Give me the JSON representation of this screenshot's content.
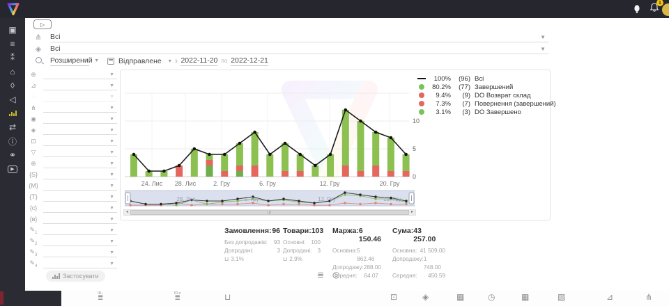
{
  "topbar": {
    "notification_count": "1"
  },
  "sidebar": {
    "items": [
      {
        "name": "sidebar-item-dashboard",
        "glyph": "▣"
      },
      {
        "name": "sidebar-item-orders",
        "glyph": "≡"
      },
      {
        "name": "sidebar-item-clients",
        "glyph": "⁑"
      },
      {
        "name": "sidebar-item-warehouse",
        "glyph": "⌂"
      },
      {
        "name": "sidebar-item-tags",
        "glyph": "◊"
      },
      {
        "name": "sidebar-item-announce",
        "glyph": "◁"
      },
      {
        "name": "sidebar-item-analytics",
        "bars": true,
        "active": true
      },
      {
        "name": "sidebar-item-settings",
        "glyph": "⇄"
      },
      {
        "name": "sidebar-item-info",
        "glyph": "ⓘ"
      },
      {
        "name": "sidebar-item-partners",
        "glyph": "⚭"
      },
      {
        "name": "sidebar-item-video",
        "glyph": "▶",
        "boxed": true
      }
    ]
  },
  "header": {
    "play_glyph": "▷",
    "filter1": {
      "value": "Всі"
    },
    "filter2": {
      "value": "Всі"
    },
    "search_mode": "Розширений",
    "date_field": "Відправлене",
    "date_from_label": "з",
    "date_from": "2022-11-20",
    "date_to_label": "по",
    "date_to": "2022-12-21"
  },
  "filters": {
    "apply_label": "Застосувати",
    "rows": [
      {
        "name": "globe-filter",
        "glyph": "⊕"
      },
      {
        "name": "level-filter",
        "glyph": "⊿"
      },
      {
        "name": "status-filter",
        "glyph": "◌",
        "faded": true
      },
      {
        "name": "structure-filter",
        "glyph": "⋔"
      },
      {
        "name": "fingerprint-filter",
        "glyph": "◉"
      },
      {
        "name": "product-filter",
        "glyph": "◈"
      },
      {
        "name": "price-filter",
        "glyph": "⊡"
      },
      {
        "name": "funnel-filter",
        "glyph": "▽"
      },
      {
        "name": "network-filter",
        "glyph": "⊕"
      },
      {
        "name": "tag-s-filter",
        "glyph": "{S}"
      },
      {
        "name": "tag-m-filter",
        "glyph": "{M}"
      },
      {
        "name": "tag-t-filter",
        "glyph": "{T}"
      },
      {
        "name": "tag-c-filter",
        "glyph": "{c}"
      },
      {
        "name": "tag-b-filter",
        "glyph": "{в}"
      },
      {
        "name": "custom-field-1-filter",
        "glyph": "✎",
        "sub": "1"
      },
      {
        "name": "custom-field-2-filter",
        "glyph": "✎",
        "sub": "2"
      },
      {
        "name": "custom-field-3-filter",
        "glyph": "✎",
        "sub": "3"
      },
      {
        "name": "custom-field-4-filter",
        "glyph": "✎",
        "sub": "4"
      }
    ]
  },
  "legend": {
    "items": [
      {
        "marker": "line",
        "color": "#111111",
        "pct": "100%",
        "count": "(96)",
        "label": "Всі"
      },
      {
        "marker": "dot",
        "color": "#77c25b",
        "pct": "80.2%",
        "count": "(77)",
        "label": "Завершений"
      },
      {
        "marker": "dot",
        "color": "#e4675e",
        "pct": "9.4%",
        "count": "(9)",
        "label": "DO Возврат склад"
      },
      {
        "marker": "dot",
        "color": "#e4675e",
        "pct": "7.3%",
        "count": "(7)",
        "label": "Повернення (завершений)"
      },
      {
        "marker": "dot",
        "color": "#77c25b",
        "pct": "3.1%",
        "count": "(3)",
        "label": "DO Завершено"
      }
    ]
  },
  "chart_data": {
    "type": "bar",
    "subtype": "stacked bars with total line overlay",
    "ylim": [
      0,
      15
    ],
    "y_ticks": [
      0,
      5,
      10
    ],
    "grid": true,
    "legend_position": "top-right",
    "x_labels": [
      {
        "text": "24. Лис",
        "x": 39
      },
      {
        "text": "28. Лис",
        "x": 87
      },
      {
        "text": "2. Гру",
        "x": 139
      },
      {
        "text": "6. Гру",
        "x": 205
      },
      {
        "text": "12. Гру",
        "x": 294
      },
      {
        "text": "20. Гру",
        "x": 380
      }
    ],
    "series": [
      {
        "name": "DO Завершено",
        "color": "#6faf4b",
        "values": [
          0,
          0,
          0,
          0,
          0,
          2,
          0,
          1,
          0,
          0,
          0,
          0,
          0,
          0,
          0,
          0,
          0,
          0,
          0
        ]
      },
      {
        "name": "DO Возврат склад",
        "color": "#e4675e",
        "values": [
          0,
          0,
          0,
          2,
          0,
          0,
          0,
          0,
          2,
          0,
          0,
          0,
          0,
          0,
          2,
          1,
          2,
          0,
          0
        ]
      },
      {
        "name": "Повернення (завершений)",
        "color": "#e4675e",
        "values": [
          0,
          0,
          0,
          0,
          0,
          1,
          1,
          1,
          0,
          0,
          1,
          1,
          0,
          0,
          0,
          0,
          0,
          1,
          1
        ]
      },
      {
        "name": "Завершений",
        "color": "#8cc152",
        "values": [
          4,
          1,
          1,
          0,
          5,
          1,
          3,
          4,
          6,
          4,
          5,
          3,
          2,
          4,
          10,
          9,
          6,
          6,
          3
        ]
      }
    ],
    "line_series": {
      "name": "Всі",
      "color": "#1a1a1a",
      "values": [
        4,
        1,
        1,
        2,
        5,
        4,
        4,
        6,
        8,
        4,
        6,
        4,
        2,
        4,
        12,
        10,
        8,
        7,
        4
      ]
    },
    "navigator_labels": [
      {
        "text": "28. Лис",
        "x": 88
      },
      {
        "text": "5. Гру",
        "x": 182
      },
      {
        "text": "12. Гру",
        "x": 290
      },
      {
        "text": "19. Гру",
        "x": 384
      }
    ]
  },
  "stats": {
    "columns": [
      {
        "title": "Замовлення:",
        "value": "96",
        "rows": [
          {
            "label": "Без допродажів:",
            "value": "93"
          },
          {
            "label": "Допродані:",
            "value": "3"
          },
          {
            "icon": "basket-icon",
            "value": "3.1%"
          }
        ]
      },
      {
        "title": "Товари:",
        "value": "103",
        "rows": [
          {
            "label": "Основні:",
            "value": "100"
          },
          {
            "label": "Допродані:",
            "value": "3"
          },
          {
            "icon": "basket-icon",
            "value": "2.9%"
          }
        ]
      },
      {
        "title": "Маржа:",
        "value": "6 150.46",
        "rows": [
          {
            "label": "Основна:",
            "value": "5 862.46"
          },
          {
            "label": "Допродажу:",
            "value": "288.00"
          },
          {
            "label": "Середня:",
            "value": "64.07"
          }
        ]
      },
      {
        "title": "Сума:",
        "value": "43 257.00",
        "rows": [
          {
            "label": "Основна:",
            "value": "41 509.00"
          },
          {
            "label": "Допродажу:",
            "value": "1 748.00"
          },
          {
            "label": "Середня:",
            "value": "450.59"
          }
        ]
      }
    ]
  },
  "view_toggles": [
    {
      "name": "list-view-toggle",
      "glyph": "≣"
    },
    {
      "name": "product-view-toggle",
      "glyph": "◎"
    }
  ],
  "bottombar": {
    "icons": [
      {
        "name": "id-list-icon",
        "type": "idlist",
        "glyph": "≣",
        "caption": "ID–"
      },
      {
        "name": "id-status-list-icon",
        "type": "idlist",
        "glyph": "≣",
        "caption": "ID-o"
      },
      {
        "name": "basket-icon",
        "glyph": "⊔"
      },
      {
        "name": "money-icon",
        "glyph": "⊡"
      },
      {
        "name": "package-icon",
        "glyph": "◈"
      },
      {
        "name": "calendar-icon",
        "glyph": "▦"
      },
      {
        "name": "stopwatch-icon",
        "glyph": "◷"
      },
      {
        "name": "calendar-pay-icon",
        "glyph": "▦"
      },
      {
        "name": "calendar-send-icon",
        "glyph": "▧"
      },
      {
        "name": "level-icon",
        "glyph": "⊿"
      },
      {
        "name": "hierarchy-icon",
        "glyph": "⋔"
      }
    ]
  }
}
